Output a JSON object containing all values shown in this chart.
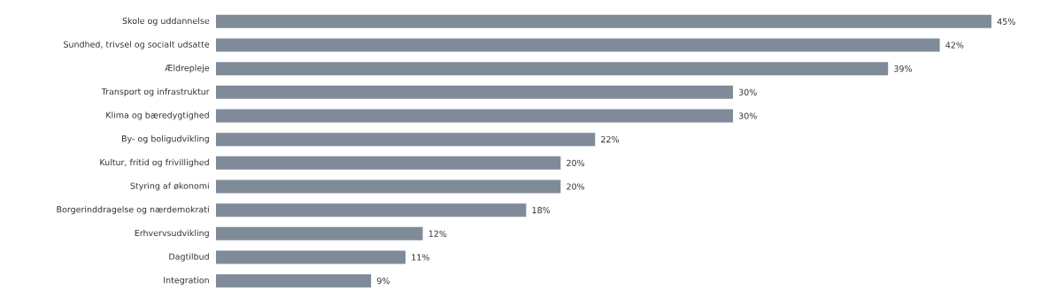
{
  "chart_data": {
    "type": "bar",
    "orientation": "horizontal",
    "color": "#808b99",
    "categories": [
      "Skole og uddannelse",
      "Sundhed, trivsel og socialt udsatte",
      "Ældrepleje",
      "Transport og infrastruktur",
      "Klima og bæredygtighed",
      "By- og boligudvikling",
      "Kultur, fritid og frivillighed",
      "Styring af økonomi",
      "Borgerinddragelse og nærdemokrati",
      "Erhvervsudvikling",
      "Dagtilbud",
      "Integration"
    ],
    "values": [
      45,
      42,
      39,
      30,
      30,
      22,
      20,
      20,
      18,
      12,
      11,
      9
    ],
    "value_labels": [
      "45%",
      "42%",
      "39%",
      "30%",
      "30%",
      "22%",
      "20%",
      "20%",
      "18%",
      "12%",
      "11%",
      "9%"
    ]
  }
}
